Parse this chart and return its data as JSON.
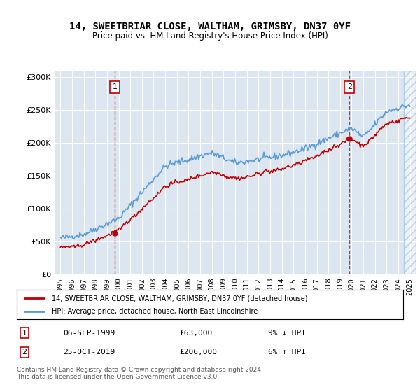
{
  "title": "14, SWEETBRIAR CLOSE, WALTHAM, GRIMSBY, DN37 0YF",
  "subtitle": "Price paid vs. HM Land Registry's House Price Index (HPI)",
  "background_color": "#dce6f1",
  "plot_bg_color": "#dce6f1",
  "hpi_color": "#5b9bd5",
  "price_color": "#c00000",
  "vline_color": "#c00000",
  "transaction1_x": 1999.68,
  "transaction1_y": 63000,
  "transaction2_x": 2019.81,
  "transaction2_y": 206000,
  "ylim": [
    0,
    310000
  ],
  "xlim": [
    1994.5,
    2025.5
  ],
  "yticks": [
    0,
    50000,
    100000,
    150000,
    200000,
    250000,
    300000
  ],
  "ytick_labels": [
    "£0",
    "£50K",
    "£100K",
    "£150K",
    "£200K",
    "£250K",
    "£300K"
  ],
  "xticks": [
    1995,
    1996,
    1997,
    1998,
    1999,
    2000,
    2001,
    2002,
    2003,
    2004,
    2005,
    2006,
    2007,
    2008,
    2009,
    2010,
    2011,
    2012,
    2013,
    2014,
    2015,
    2016,
    2017,
    2018,
    2019,
    2020,
    2021,
    2022,
    2023,
    2024,
    2025
  ],
  "legend_line1": "14, SWEETBRIAR CLOSE, WALTHAM, GRIMSBY, DN37 0YF (detached house)",
  "legend_line2": "HPI: Average price, detached house, North East Lincolnshire",
  "table_row1": [
    "1",
    "06-SEP-1999",
    "£63,000",
    "9% ↓ HPI"
  ],
  "table_row2": [
    "2",
    "25-OCT-2019",
    "£206,000",
    "6% ↑ HPI"
  ],
  "footer": "Contains HM Land Registry data © Crown copyright and database right 2024.\nThis data is licensed under the Open Government Licence v3.0.",
  "hatch_alpha": 0.15,
  "hatch_color": "#5b9bd5"
}
